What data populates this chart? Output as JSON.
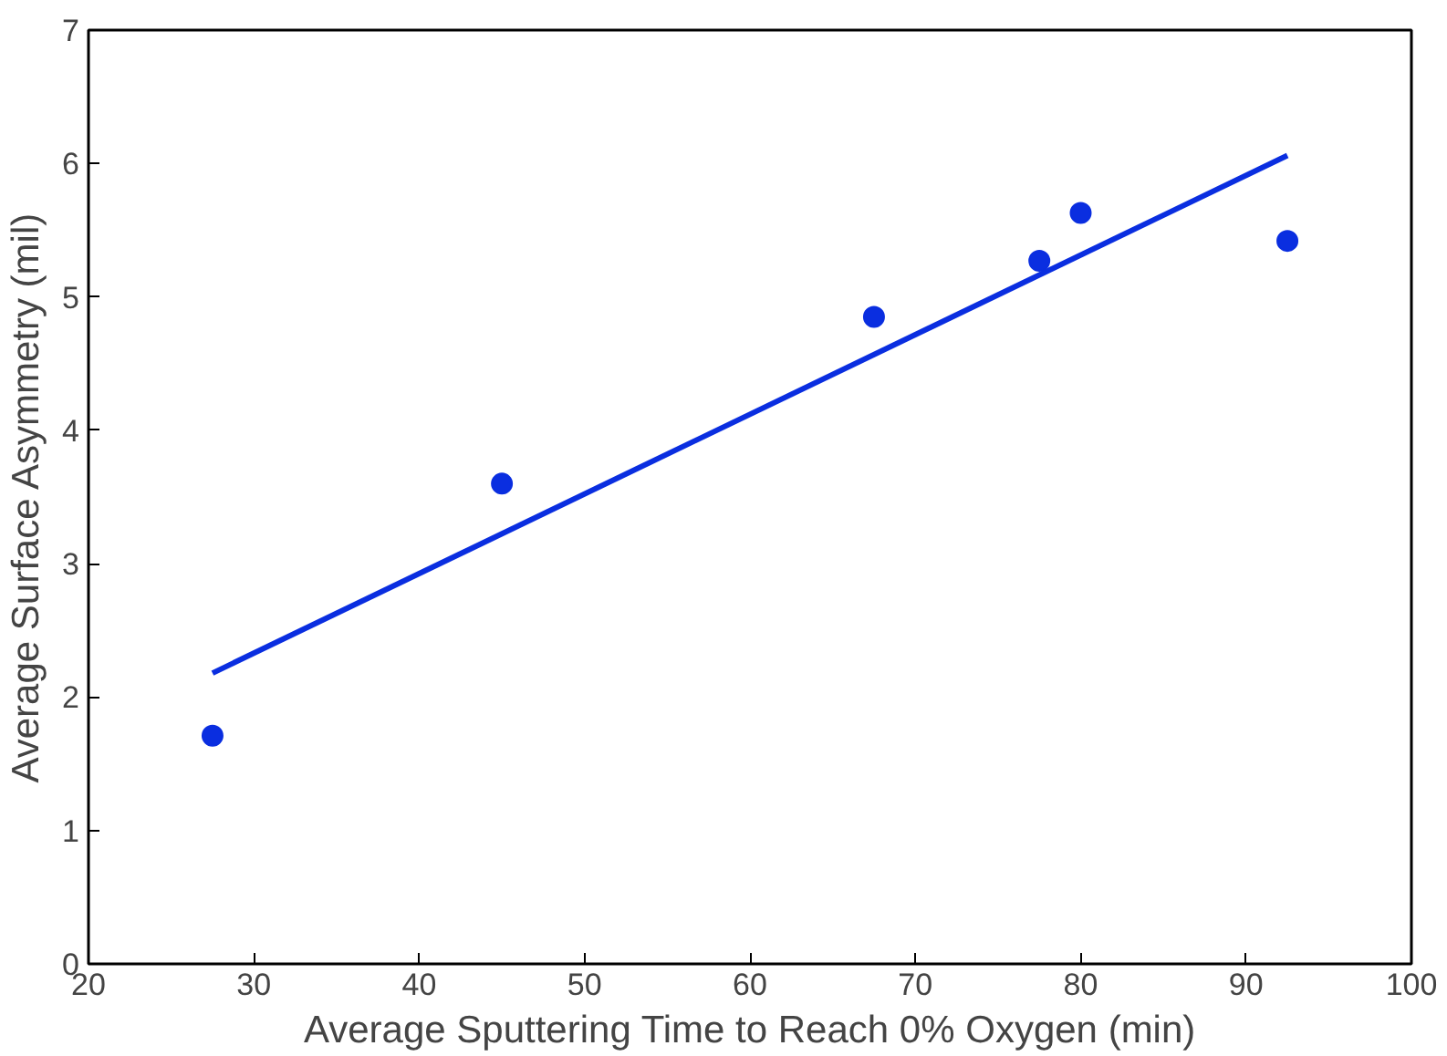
{
  "chart_data": {
    "type": "scatter",
    "xlabel": "Average Sputtering Time to Reach 0% Oxygen (min)",
    "ylabel": "Average Surface Asymmetry (mil)",
    "xlim": [
      20,
      100
    ],
    "ylim": [
      0,
      7
    ],
    "xticks": [
      20,
      30,
      40,
      50,
      60,
      70,
      80,
      90,
      100
    ],
    "yticks": [
      0,
      1,
      2,
      3,
      4,
      5,
      6,
      7
    ],
    "grid": false,
    "series": [
      {
        "marker": "circle",
        "color": "#0a2ee0",
        "x": [
          27.5,
          45,
          67.5,
          77.5,
          80,
          92.5
        ],
        "values": [
          1.71,
          3.6,
          4.85,
          5.27,
          5.63,
          5.42
        ]
      },
      {
        "type": "line",
        "color": "#0a2ee0",
        "line_style": "solid",
        "x": [
          27.5,
          92.5
        ],
        "values": [
          2.18,
          6.06
        ]
      }
    ]
  }
}
